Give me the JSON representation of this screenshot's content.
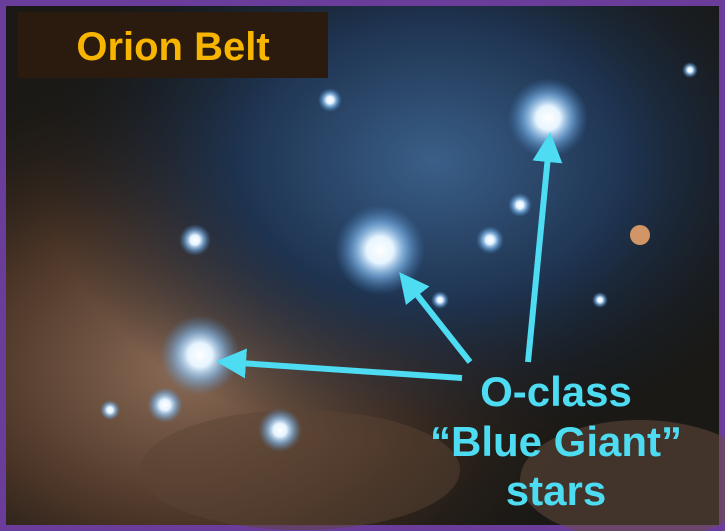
{
  "title": "Orion Belt",
  "annotation": {
    "lines": [
      "O-class",
      "“Blue Giant”",
      "stars"
    ]
  }
}
